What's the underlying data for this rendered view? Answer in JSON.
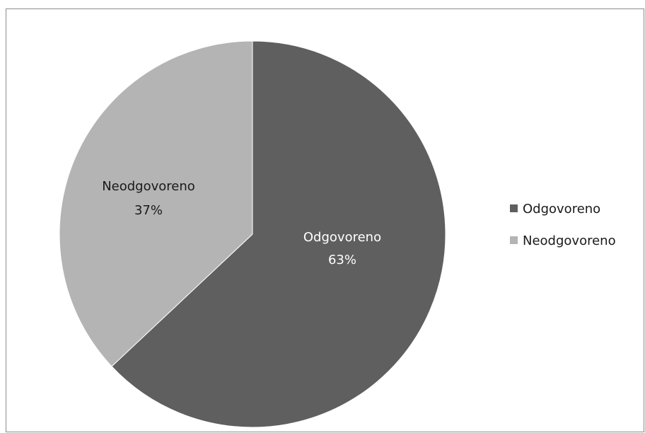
{
  "chart_data": {
    "type": "pie",
    "title": "",
    "slices": [
      {
        "label": "Odgovoreno",
        "value": 63,
        "value_label": "63%",
        "color": "#5f5f5f",
        "label_color": "#ffffff"
      },
      {
        "label": "Neodgovoreno",
        "value": 37,
        "value_label": "37%",
        "color": "#b4b4b4",
        "label_color": "#1a1a1a"
      }
    ],
    "legend_position": "right",
    "start_angle": "12 o'clock",
    "direction": "clockwise"
  }
}
